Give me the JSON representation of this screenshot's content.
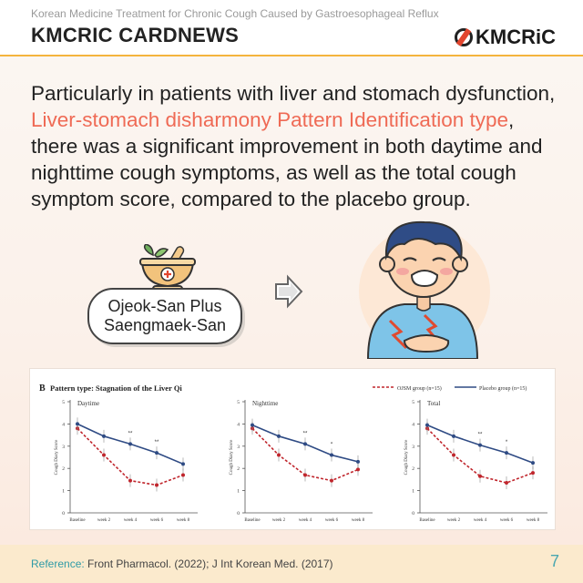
{
  "header": {
    "subtitle": "Korean Medicine Treatment for Chronic Cough Caused by Gastroesophageal Reflux",
    "title": "KMCRIC CARDNEWS",
    "logo_text": "KMCRiC"
  },
  "body": {
    "part1": "Particularly in patients with liver and stomach dysfunction, ",
    "highlight": "Liver-stomach disharmony Pattern Identification type",
    "part2": ", there was a significant improvement in both daytime and nighttime cough symptoms, as well as the total cough symptom score, compared to the placebo group."
  },
  "treatment": {
    "line1": "Ojeok-San Plus",
    "line2": "Saengmaek-San"
  },
  "figure": {
    "panel_letter": "B",
    "title": "Pattern type: Stagnation of the Liver Qi",
    "legend": [
      "OJSM group (n=15)",
      "Placebo group (n=15)"
    ],
    "ylabel": "Cough Diary Score",
    "colors": {
      "ojsm": "#c0262d",
      "placebo": "#2f4b84"
    }
  },
  "chart_data": [
    {
      "type": "line",
      "title": "Daytime",
      "categories": [
        "Baseline",
        "week 2",
        "week 4",
        "week 6",
        "week 8"
      ],
      "ylim": [
        0,
        5
      ],
      "series": [
        {
          "name": "OJSM group (n=15)",
          "values": [
            3.8,
            2.6,
            1.45,
            1.25,
            1.7
          ]
        },
        {
          "name": "Placebo group (n=15)",
          "values": [
            4.0,
            3.45,
            3.1,
            2.7,
            2.2
          ]
        }
      ],
      "significance": [
        "",
        "",
        "**",
        "**",
        ""
      ]
    },
    {
      "type": "line",
      "title": "Nighttime",
      "categories": [
        "Baseline",
        "week 2",
        "week 4",
        "week 6",
        "week 8"
      ],
      "ylim": [
        0,
        5
      ],
      "series": [
        {
          "name": "OJSM group (n=15)",
          "values": [
            3.8,
            2.6,
            1.7,
            1.45,
            1.95
          ]
        },
        {
          "name": "Placebo group (n=15)",
          "values": [
            3.95,
            3.45,
            3.1,
            2.6,
            2.3
          ]
        }
      ],
      "significance": [
        "",
        "",
        "**",
        "*",
        ""
      ]
    },
    {
      "type": "line",
      "title": "Total",
      "categories": [
        "Baseline",
        "week 2",
        "week 4",
        "week 6",
        "week 8"
      ],
      "ylim": [
        0,
        5
      ],
      "series": [
        {
          "name": "OJSM group (n=15)",
          "values": [
            3.8,
            2.6,
            1.65,
            1.35,
            1.8
          ]
        },
        {
          "name": "Placebo group (n=15)",
          "values": [
            3.95,
            3.45,
            3.05,
            2.7,
            2.25
          ]
        }
      ],
      "significance": [
        "",
        "",
        "**",
        "*",
        ""
      ]
    }
  ],
  "footer": {
    "ref_label": "Reference:",
    "ref_text": "Front Pharmacol. (2022); J Int Korean Med. (2017)",
    "page_number": "7"
  }
}
